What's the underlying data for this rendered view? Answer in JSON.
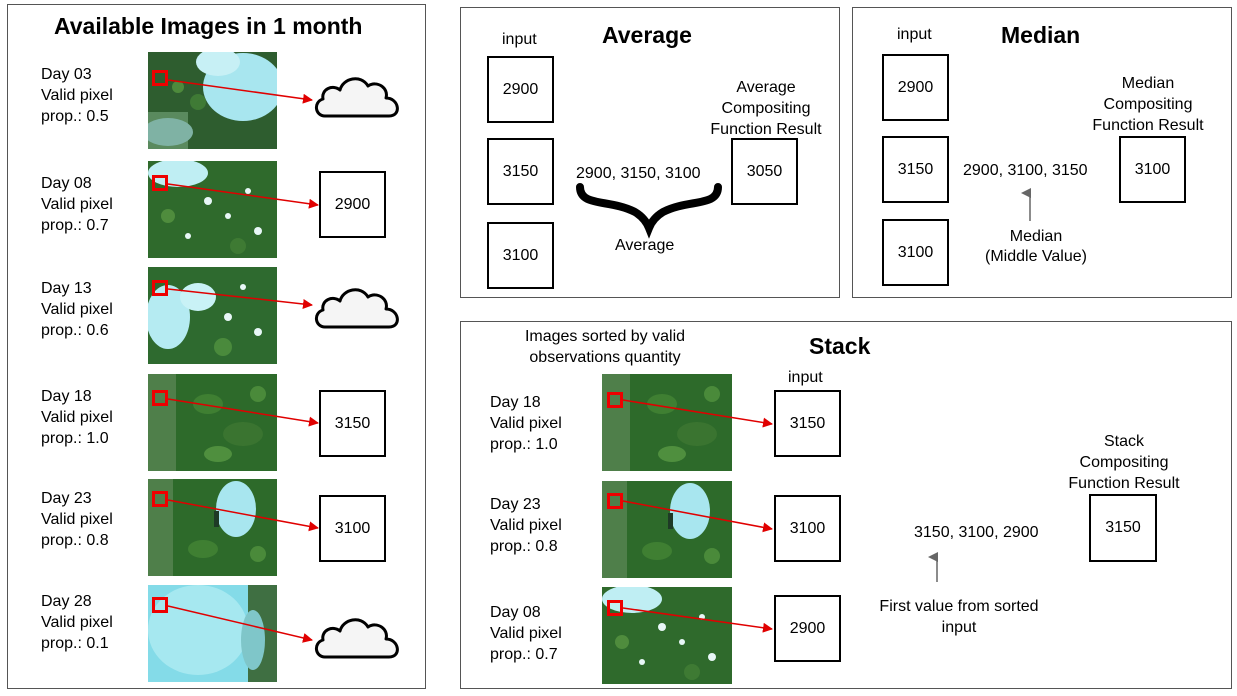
{
  "left_panel": {
    "title": "Available Images in 1 month",
    "days": [
      {
        "day": "Day 03",
        "line2": "Valid pixel",
        "line3": "prop.: 0.5",
        "result": "cloud-icon",
        "value": ""
      },
      {
        "day": "Day 08",
        "line2": "Valid pixel",
        "line3": "prop.: 0.7",
        "result": "box",
        "value": "2900"
      },
      {
        "day": "Day 13",
        "line2": "Valid pixel",
        "line3": "prop.: 0.6",
        "result": "cloud-icon",
        "value": ""
      },
      {
        "day": "Day 18",
        "line2": "Valid pixel",
        "line3": "prop.: 1.0",
        "result": "box",
        "value": "3150"
      },
      {
        "day": "Day 23",
        "line2": "Valid pixel",
        "line3": "prop.: 0.8",
        "result": "box",
        "value": "3100"
      },
      {
        "day": "Day 28",
        "line2": "Valid pixel",
        "line3": "prop.: 0.1",
        "result": "cloud-icon",
        "value": ""
      }
    ]
  },
  "average_panel": {
    "title": "Average",
    "input_label": "input",
    "inputs": [
      "2900",
      "3150",
      "3100"
    ],
    "values_text": "2900, 3150, 3100",
    "operation_label": "Average",
    "result_label_1": "Average",
    "result_label_2": "Compositing",
    "result_label_3": "Function Result",
    "result": "3050"
  },
  "median_panel": {
    "title": "Median",
    "input_label": "input",
    "inputs": [
      "2900",
      "3150",
      "3100"
    ],
    "values_text": "2900, 3100, 3150",
    "operation_label_1": "Median",
    "operation_label_2": "(Middle Value)",
    "result_label_1": "Median",
    "result_label_2": "Compositing",
    "result_label_3": "Function Result",
    "result": "3100"
  },
  "stack_panel": {
    "title": "Stack",
    "sorted_note_1": "Images sorted by valid",
    "sorted_note_2": "observations quantity",
    "input_label": "input",
    "days": [
      {
        "day": "Day 18",
        "line2": "Valid pixel",
        "line3": "prop.: 1.0",
        "value": "3150"
      },
      {
        "day": "Day 23",
        "line2": "Valid pixel",
        "line3": "prop.: 0.8",
        "value": "3100"
      },
      {
        "day": "Day 08",
        "line2": "Valid pixel",
        "line3": "prop.: 0.7",
        "value": "2900"
      }
    ],
    "values_text": "3150, 3100, 2900",
    "first_note_1": "First value from sorted",
    "first_note_2": "input",
    "result_label_1": "Stack",
    "result_label_2": "Compositing",
    "result_label_3": "Function Result",
    "result": "3150"
  },
  "colors": {
    "marker": "#e00000",
    "arrow": "#e00000",
    "vegetation": "#2f6b2a",
    "cloud": "#8fe0ec",
    "gray_arrow": "#666666"
  }
}
